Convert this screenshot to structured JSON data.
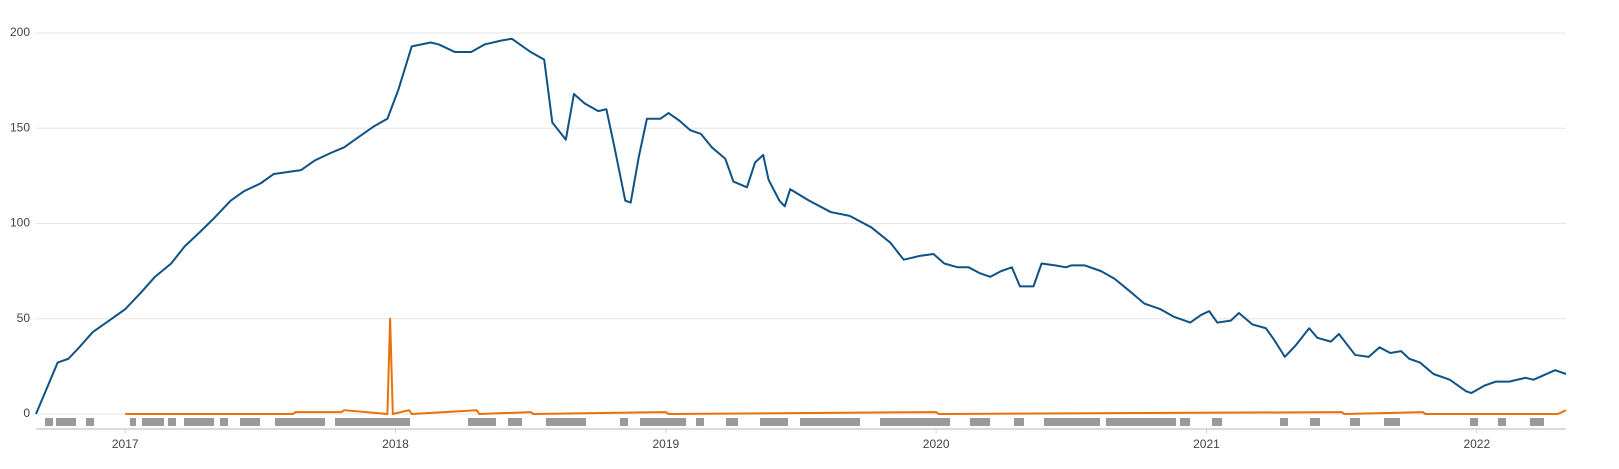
{
  "chart_data": {
    "type": "line",
    "xlim": [
      2016.67,
      2022.33
    ],
    "xticks": [
      2017,
      2018,
      2019,
      2020,
      2021,
      2022
    ],
    "ylim": [
      0,
      200
    ],
    "yticks": [
      0,
      50,
      100,
      150,
      200
    ],
    "grid": true,
    "series": [
      {
        "color": "#0f5285",
        "x": [
          2016.67,
          2016.75,
          2016.79,
          2016.83,
          2016.88,
          2016.94,
          2017.0,
          2017.06,
          2017.11,
          2017.17,
          2017.22,
          2017.28,
          2017.33,
          2017.39,
          2017.44,
          2017.5,
          2017.55,
          2017.65,
          2017.7,
          2017.76,
          2017.81,
          2017.87,
          2017.92,
          2017.97,
          2018.01,
          2018.06,
          2018.13,
          2018.16,
          2018.22,
          2018.28,
          2018.33,
          2018.39,
          2018.43,
          2018.5,
          2018.55,
          2018.58,
          2018.63,
          2018.66,
          2018.7,
          2018.75,
          2018.78,
          2018.81,
          2018.85,
          2018.87,
          2018.9,
          2018.93,
          2018.98,
          2019.01,
          2019.05,
          2019.09,
          2019.13,
          2019.17,
          2019.22,
          2019.25,
          2019.3,
          2019.33,
          2019.36,
          2019.38,
          2019.42,
          2019.44,
          2019.46,
          2019.53,
          2019.61,
          2019.68,
          2019.76,
          2019.83,
          2019.88,
          2019.94,
          2019.99,
          2020.03,
          2020.08,
          2020.12,
          2020.16,
          2020.2,
          2020.24,
          2020.28,
          2020.31,
          2020.36,
          2020.39,
          2020.44,
          2020.48,
          2020.5,
          2020.55,
          2020.61,
          2020.66,
          2020.72,
          2020.77,
          2020.83,
          2020.88,
          2020.94,
          2020.98,
          2021.01,
          2021.04,
          2021.09,
          2021.12,
          2021.17,
          2021.22,
          2021.25,
          2021.29,
          2021.33,
          2021.38,
          2021.41,
          2021.46,
          2021.49,
          2021.55,
          2021.6,
          2021.64,
          2021.68,
          2021.72,
          2021.75,
          2021.79,
          2021.84,
          2021.9,
          2021.96,
          2021.98,
          2022.03,
          2022.07,
          2022.12,
          2022.18,
          2022.21,
          2022.29,
          2022.33
        ],
        "values": [
          0,
          27,
          29,
          35,
          43,
          49,
          55,
          64,
          72,
          79,
          88,
          96,
          103,
          112,
          117,
          121,
          126,
          128,
          133,
          137,
          140,
          146,
          151,
          155,
          170,
          193,
          195,
          194,
          190,
          190,
          194,
          196,
          197,
          190,
          186,
          153,
          144,
          168,
          163,
          159,
          160,
          140,
          112,
          111,
          135,
          155,
          155,
          158,
          154,
          149,
          147,
          140,
          134,
          122,
          119,
          132,
          136,
          123,
          112,
          109,
          118,
          112,
          106,
          104,
          98,
          90,
          81,
          83,
          84,
          79,
          77,
          77,
          74,
          72,
          75,
          77,
          67,
          67,
          79,
          78,
          77,
          78,
          78,
          75,
          71,
          64,
          58,
          55,
          51,
          48,
          52,
          54,
          48,
          49,
          53,
          47,
          45,
          39,
          30,
          36,
          45,
          40,
          38,
          42,
          31,
          30,
          35,
          32,
          33,
          29,
          27,
          21,
          18,
          12,
          11,
          15,
          17,
          17,
          19,
          18,
          23,
          21
        ]
      },
      {
        "color": "#e8710a",
        "x": [
          2017.0,
          2017.62,
          2017.63,
          2017.8,
          2017.81,
          2017.97,
          2017.98,
          2017.99,
          2018.05,
          2018.06,
          2018.3,
          2018.31,
          2018.5,
          2018.51,
          2019.0,
          2019.01,
          2020.0,
          2020.01,
          2021.5,
          2021.51,
          2021.8,
          2021.81,
          2022.3,
          2022.33
        ],
        "values": [
          0,
          0,
          1,
          1,
          2,
          0,
          50,
          0,
          2,
          0,
          2,
          0,
          1,
          0,
          1,
          0,
          1,
          0,
          1,
          0,
          1,
          0,
          0,
          2
        ]
      }
    ]
  }
}
